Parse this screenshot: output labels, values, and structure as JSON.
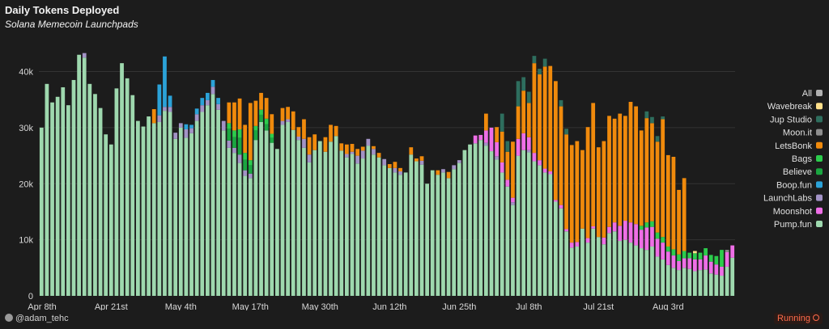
{
  "header": {
    "title": "Daily Tokens Deployed",
    "subtitle": "Solana Memecoin Launchpads"
  },
  "footer": {
    "user": "@adam_tehc",
    "status": "Running"
  },
  "chart_data": {
    "type": "bar",
    "stacked": true,
    "title": "Daily Tokens Deployed",
    "subtitle": "Solana Memecoin Launchpads",
    "x_tick_labels": [
      "Apr 8th",
      "Apr 21st",
      "May 4th",
      "May 17th",
      "May 30th",
      "Jun 12th",
      "Jun 25th",
      "Jul 8th",
      "Jul 21st",
      "Aug 3rd"
    ],
    "y_tick_labels": [
      "0",
      "10k",
      "20k",
      "30k",
      "40k"
    ],
    "ylim": [
      0,
      47000
    ],
    "grid": "horizontal",
    "legend_position": "right",
    "legend": [
      {
        "name": "All",
        "color": "#b0b0b0"
      },
      {
        "name": "Wavebreak",
        "color": "#ffe08a"
      },
      {
        "name": "Jup Studio",
        "color": "#2e6e5e"
      },
      {
        "name": "Moon.it",
        "color": "#8e8e8e"
      },
      {
        "name": "LetsBonk",
        "color": "#f08a0c"
      },
      {
        "name": "Bags",
        "color": "#2ccc4c"
      },
      {
        "name": "Believe",
        "color": "#1aa640"
      },
      {
        "name": "Boop.fun",
        "color": "#2ba2d8"
      },
      {
        "name": "LaunchLabs",
        "color": "#a393c6"
      },
      {
        "name": "Moonshot",
        "color": "#ee6ee6"
      },
      {
        "name": "Pump.fun",
        "color": "#9ed8ae"
      }
    ],
    "pump_fun": [
      30000,
      37800,
      34500,
      35500,
      37200,
      34000,
      38500,
      43000,
      42500,
      37800,
      36000,
      33500,
      28800,
      27000,
      37000,
      41500,
      38800,
      35800,
      31200,
      30200,
      32000,
      30800,
      31000,
      33000,
      32800,
      28000,
      30000,
      28200,
      29000,
      31200,
      32800,
      34000,
      36000,
      33200,
      29500,
      26400,
      25500,
      23700,
      21400,
      21000,
      27800,
      31000,
      29500,
      27300,
      26200,
      30500,
      31000,
      29600,
      27800,
      26400,
      23800,
      26000,
      27600,
      25700,
      27500,
      28500,
      25900,
      24700,
      25300,
      23600,
      24500,
      26800,
      25200,
      24700,
      23300,
      22800,
      22000,
      21600,
      22000,
      25200,
      24000,
      23400,
      20000,
      22400,
      21600,
      22000,
      21000,
      22600,
      23700,
      26000,
      27000,
      27200,
      27800,
      26800,
      25800,
      24300,
      22000,
      19500,
      16200,
      25000,
      26000,
      25600,
      24000,
      23300,
      22000,
      21700,
      16800,
      15600,
      11500,
      8600,
      8800,
      12000,
      9500,
      12000,
      10500,
      9200,
      11200,
      11500,
      9800,
      10000,
      9500,
      9000,
      8500,
      8200,
      8800,
      7000,
      6500,
      5500,
      5000,
      4600,
      5000,
      4800,
      4400,
      4600,
      4700,
      4000,
      3800,
      3600,
      5200,
      6800
    ],
    "launch_labs": [
      0,
      0,
      0,
      0,
      0,
      0,
      0,
      0,
      800,
      0,
      0,
      0,
      0,
      0,
      0,
      0,
      0,
      0,
      0,
      0,
      0,
      0,
      1200,
      700,
      900,
      1100,
      800,
      1500,
      900,
      1200,
      1200,
      900,
      1300,
      1000,
      1700,
      1300,
      900,
      1500,
      1000,
      800,
      0,
      0,
      0,
      0,
      0,
      700,
      500,
      0,
      600,
      1600,
      1400,
      0,
      0,
      0,
      0,
      0,
      0,
      600,
      400,
      1400,
      1400,
      1200,
      1000,
      0,
      1100,
      0,
      800,
      600,
      0,
      0,
      0,
      700,
      0,
      0,
      0,
      600,
      0,
      700,
      500,
      0,
      0,
      0,
      0,
      500,
      0,
      600,
      0,
      0,
      500,
      0,
      0,
      400,
      0,
      0,
      0,
      0,
      0,
      0,
      0,
      0,
      0,
      0,
      0,
      0,
      0,
      0,
      0,
      0,
      0,
      0,
      0,
      0,
      0,
      0,
      0,
      0,
      0,
      0,
      0,
      0,
      0,
      0,
      0,
      0,
      0,
      0,
      0,
      0,
      0,
      0
    ],
    "moonshot": [
      0,
      0,
      0,
      0,
      0,
      0,
      0,
      0,
      0,
      0,
      0,
      0,
      0,
      0,
      0,
      0,
      0,
      0,
      0,
      0,
      0,
      0,
      0,
      0,
      0,
      0,
      0,
      0,
      0,
      0,
      0,
      0,
      0,
      0,
      0,
      0,
      0,
      0,
      0,
      0,
      0,
      0,
      0,
      0,
      0,
      0,
      0,
      0,
      0,
      0,
      0,
      0,
      0,
      0,
      0,
      0,
      0,
      0,
      0,
      0,
      0,
      0,
      0,
      0,
      0,
      0,
      0,
      0,
      0,
      0,
      0,
      0,
      0,
      0,
      0,
      0,
      0,
      0,
      0,
      0,
      0,
      1400,
      900,
      2200,
      4200,
      2500,
      1800,
      1200,
      800,
      3000,
      3000,
      2300,
      1500,
      900,
      700,
      500,
      300,
      600,
      400,
      900,
      800,
      0,
      800,
      400,
      0,
      1200,
      1100,
      1600,
      2700,
      3400,
      3600,
      3800,
      3300,
      4000,
      3500,
      3200,
      3000,
      2400,
      2200,
      1600,
      1700,
      1900,
      2100,
      1900,
      2500,
      2100,
      1800,
      1600,
      2600,
      2200
    ],
    "believe": [
      0,
      0,
      0,
      0,
      0,
      0,
      0,
      0,
      0,
      0,
      0,
      0,
      0,
      0,
      0,
      0,
      0,
      0,
      0,
      0,
      0,
      0,
      0,
      0,
      0,
      0,
      0,
      0,
      0,
      0,
      0,
      0,
      0,
      0,
      0,
      2100,
      1900,
      3000,
      1900,
      1500,
      1700,
      1300,
      1100,
      900,
      0,
      0,
      0,
      0,
      0,
      0,
      0,
      0,
      0,
      0,
      0,
      0,
      0,
      0,
      0,
      0,
      0,
      0,
      0,
      0,
      0,
      0,
      0,
      0,
      0,
      0,
      0,
      0,
      0,
      0,
      0,
      0,
      0,
      0,
      0,
      0,
      0,
      0,
      0,
      0,
      0,
      0,
      0,
      0,
      0,
      0,
      0,
      0,
      0,
      0,
      0,
      0,
      0,
      0,
      0,
      0,
      0,
      0,
      0,
      0,
      0,
      0,
      0,
      0,
      0,
      0,
      0,
      0,
      0,
      0,
      0,
      0,
      0,
      0,
      0,
      0,
      0,
      0,
      0,
      0,
      0,
      0,
      0,
      0,
      0,
      0
    ],
    "bags": [
      0,
      0,
      0,
      0,
      0,
      0,
      0,
      0,
      0,
      0,
      0,
      0,
      0,
      0,
      0,
      0,
      0,
      0,
      0,
      0,
      0,
      0,
      0,
      0,
      0,
      0,
      0,
      0,
      0,
      0,
      0,
      0,
      0,
      0,
      0,
      1000,
      1200,
      1500,
      1200,
      900,
      800,
      900,
      1000,
      700,
      0,
      0,
      0,
      0,
      0,
      0,
      0,
      0,
      0,
      0,
      0,
      0,
      0,
      0,
      0,
      0,
      0,
      0,
      0,
      0,
      0,
      0,
      0,
      0,
      0,
      0,
      0,
      0,
      0,
      0,
      0,
      0,
      0,
      0,
      0,
      0,
      0,
      0,
      0,
      0,
      0,
      0,
      0,
      0,
      0,
      0,
      0,
      0,
      0,
      0,
      0,
      0,
      0,
      0,
      0,
      0,
      0,
      0,
      0,
      0,
      0,
      0,
      0,
      0,
      0,
      0,
      0,
      0,
      700,
      900,
      1000,
      1100,
      1000,
      900,
      1100,
      1200,
      1300,
      1000,
      1100,
      1200,
      1300,
      1200,
      1500,
      3000
    ],
    "boop_fun": [
      0,
      0,
      0,
      0,
      0,
      0,
      0,
      0,
      0,
      0,
      0,
      0,
      0,
      0,
      0,
      0,
      0,
      0,
      0,
      0,
      0,
      0,
      5500,
      9000,
      2000,
      0,
      0,
      900,
      600,
      1000,
      1300,
      1300,
      1200,
      1100,
      0,
      0,
      0,
      0,
      0,
      0,
      0,
      0,
      0,
      0,
      0,
      0,
      0,
      0,
      0,
      0,
      0,
      0,
      0,
      0,
      0,
      0,
      0,
      0,
      0,
      0,
      0,
      0,
      0,
      0,
      0,
      0,
      0,
      0,
      0,
      0,
      0,
      0,
      0,
      0,
      0,
      0,
      0,
      0,
      0,
      0,
      0,
      0,
      0,
      0,
      0,
      0,
      0,
      0,
      0,
      0,
      0,
      0,
      0,
      0,
      0,
      0,
      0,
      0,
      0,
      0,
      0,
      0,
      0,
      0,
      0,
      0,
      0,
      0,
      0,
      0,
      0,
      0,
      0,
      0,
      0,
      0,
      0,
      0,
      0,
      0,
      0,
      0,
      0,
      0,
      0,
      0,
      0,
      0,
      0,
      0
    ],
    "moon_it": [
      0,
      0,
      0,
      0,
      0,
      0,
      0,
      0,
      0,
      0,
      0,
      0,
      0,
      0,
      0,
      0,
      0,
      0,
      0,
      0,
      0,
      0,
      0,
      0,
      0,
      0,
      0,
      0,
      0,
      0,
      0,
      0,
      0,
      0,
      0,
      0,
      0,
      0,
      0,
      0,
      0,
      0,
      0,
      0,
      0,
      0,
      0,
      0,
      0,
      0,
      0,
      0,
      0,
      0,
      0,
      0,
      0,
      0,
      0,
      0,
      0,
      0,
      0,
      0,
      0,
      0,
      0,
      0,
      0,
      0,
      0,
      0,
      0,
      0,
      0,
      0,
      0,
      0,
      0,
      0,
      0,
      0,
      0,
      0,
      0,
      0,
      0,
      0,
      0,
      0,
      0,
      0,
      0,
      0,
      0,
      0,
      0,
      0,
      0,
      0,
      0,
      0,
      0,
      0,
      0,
      0,
      0,
      0,
      0,
      0,
      0,
      0,
      0,
      0,
      0,
      0,
      0,
      0,
      0,
      0,
      0,
      0,
      0,
      0,
      0,
      0,
      0,
      0,
      400,
      0
    ],
    "lets_bonk": [
      0,
      0,
      0,
      0,
      0,
      0,
      0,
      0,
      0,
      0,
      0,
      0,
      0,
      0,
      0,
      0,
      0,
      0,
      0,
      0,
      0,
      2500,
      0,
      0,
      0,
      0,
      0,
      0,
      0,
      0,
      0,
      0,
      0,
      0,
      0,
      3700,
      5000,
      5500,
      5000,
      10200,
      4500,
      3000,
      3700,
      3500,
      0,
      2300,
      2200,
      3300,
      1700,
      3500,
      3100,
      2800,
      0,
      2600,
      3000,
      1800,
      1300,
      1700,
      1400,
      1200,
      700,
      0,
      500,
      800,
      0,
      700,
      1100,
      600,
      0,
      1300,
      500,
      800,
      0,
      0,
      800,
      0,
      1100,
      0,
      0,
      0,
      0,
      0,
      0,
      3000,
      0,
      2700,
      5500,
      5000,
      10000,
      5800,
      7600,
      6100,
      16000,
      15300,
      18200,
      18800,
      21200,
      17600,
      16900,
      17400,
      18000,
      14000,
      19800,
      22000,
      16000,
      17200,
      19800,
      18500,
      20000,
      18700,
      21500,
      21000,
      17000,
      18600,
      17500,
      16200,
      21000,
      16300,
      16500,
      11500,
      13000
    ],
    "jup_studio": [
      0,
      0,
      0,
      0,
      0,
      0,
      0,
      0,
      0,
      0,
      0,
      0,
      0,
      0,
      0,
      0,
      0,
      0,
      0,
      0,
      0,
      0,
      0,
      0,
      0,
      0,
      0,
      0,
      0,
      0,
      0,
      0,
      0,
      0,
      0,
      0,
      0,
      0,
      0,
      0,
      0,
      0,
      0,
      0,
      0,
      0,
      0,
      0,
      0,
      0,
      0,
      0,
      0,
      0,
      0,
      0,
      0,
      0,
      0,
      0,
      0,
      0,
      0,
      0,
      0,
      0,
      0,
      0,
      0,
      0,
      0,
      0,
      0,
      0,
      0,
      0,
      0,
      0,
      0,
      0,
      0,
      0,
      0,
      0,
      0,
      0,
      3200,
      1900,
      0,
      4500,
      2400,
      2000,
      1300,
      1000,
      1400,
      0,
      0,
      1100,
      1000,
      0,
      0,
      0,
      0,
      0,
      0,
      0,
      0,
      0,
      0,
      0,
      0,
      0,
      0,
      1200,
      1100,
      1000,
      500,
      0,
      0,
      0,
      0,
      0,
      0,
      0,
      0,
      0,
      0,
      0,
      0,
      0
    ],
    "wavebreak": [
      0,
      0,
      0,
      0,
      0,
      0,
      0,
      0,
      0,
      0,
      0,
      0,
      0,
      0,
      0,
      0,
      0,
      0,
      0,
      0,
      0,
      0,
      0,
      0,
      0,
      0,
      0,
      0,
      0,
      0,
      0,
      0,
      0,
      0,
      0,
      0,
      0,
      0,
      0,
      0,
      0,
      0,
      0,
      0,
      0,
      0,
      0,
      0,
      0,
      0,
      0,
      0,
      0,
      0,
      0,
      0,
      0,
      0,
      0,
      0,
      0,
      0,
      0,
      0,
      0,
      0,
      0,
      0,
      0,
      0,
      0,
      0,
      0,
      0,
      0,
      0,
      0,
      0,
      0,
      0,
      0,
      0,
      0,
      0,
      0,
      0,
      0,
      0,
      0,
      0,
      0,
      0,
      0,
      0,
      0,
      0,
      0,
      0,
      0,
      0,
      0,
      0,
      0,
      0,
      0,
      0,
      0,
      0,
      0,
      0,
      0,
      0,
      0,
      0,
      0,
      0,
      0,
      0,
      0,
      0,
      0,
      0,
      400,
      0,
      0,
      0,
      0,
      0,
      0,
      0
    ]
  }
}
